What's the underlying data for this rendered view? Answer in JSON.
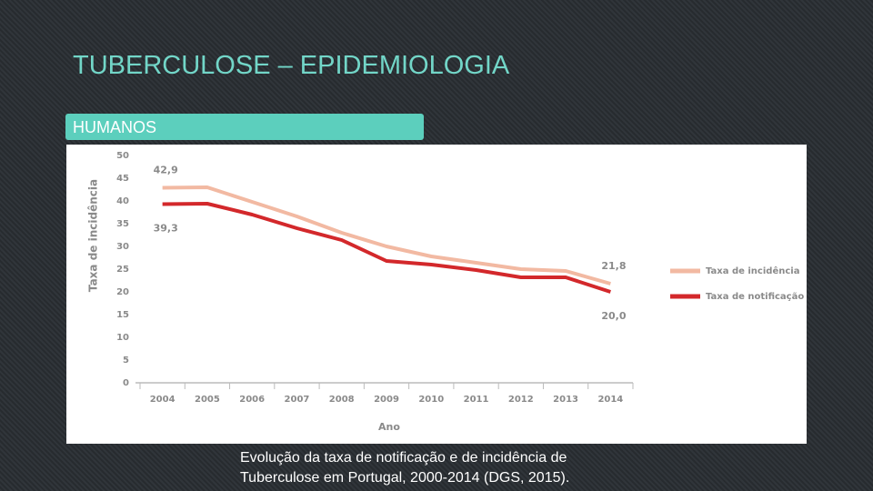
{
  "slide": {
    "title": "TUBERCULOSE – EPIDEMIOLOGIA",
    "label": "HUMANOS",
    "caption": [
      "Evolução da taxa de notificação e de incidência de",
      "Tuberculose em Portugal, 2000-2014 (DGS, 2015)."
    ]
  },
  "chart_data": {
    "type": "line",
    "ylabel": "Taxa de incidência",
    "xlabel": "Ano",
    "categories": [
      "2004",
      "2005",
      "2006",
      "2007",
      "2008",
      "2009",
      "2010",
      "2011",
      "2012",
      "2013",
      "2014"
    ],
    "series": [
      {
        "name": "Taxa de incidência",
        "color": "#f2b9a2",
        "values": [
          42.9,
          43.0,
          39.8,
          36.6,
          33.0,
          30.0,
          27.8,
          26.4,
          25.0,
          24.6,
          21.8
        ],
        "value_labels": [
          "42,9",
          null,
          null,
          null,
          null,
          null,
          null,
          null,
          null,
          null,
          "21,8"
        ]
      },
      {
        "name": "Taxa de notificação",
        "color": "#d3282b",
        "values": [
          39.3,
          39.4,
          37.0,
          34.0,
          31.4,
          26.8,
          26.0,
          24.8,
          23.2,
          23.2,
          20.0
        ],
        "value_labels": [
          "39,3",
          null,
          null,
          null,
          null,
          null,
          null,
          null,
          null,
          null,
          "20,0"
        ]
      }
    ],
    "ylim": [
      0,
      50
    ],
    "yticks": [
      0,
      5,
      10,
      15,
      20,
      25,
      30,
      35,
      40,
      45,
      50
    ],
    "grid": false,
    "legend": "right"
  }
}
